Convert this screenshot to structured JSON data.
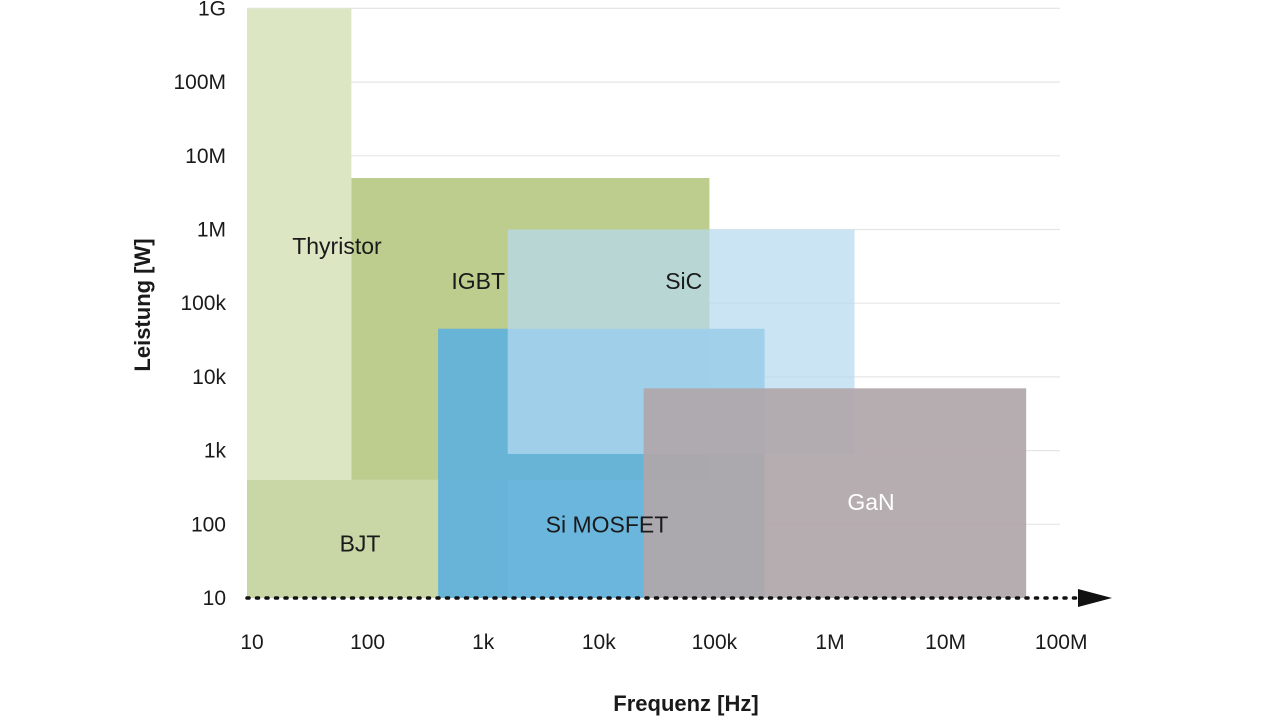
{
  "chart_data": {
    "type": "area",
    "xlabel": "Frequenz [Hz]",
    "ylabel": "Leistung [W]",
    "x_scale": "log",
    "y_scale": "log",
    "x_ticks": [
      "10",
      "100",
      "1k",
      "10k",
      "100k",
      "1M",
      "10M",
      "100M"
    ],
    "x_tick_values": [
      10,
      100,
      1000,
      10000,
      100000,
      1000000,
      10000000,
      100000000
    ],
    "y_ticks": [
      "10",
      "100",
      "1k",
      "10k",
      "100k",
      "1M",
      "10M",
      "100M",
      "1G"
    ],
    "y_tick_values": [
      10,
      100,
      1000,
      10000,
      100000,
      1000000,
      10000000,
      100000000,
      1000000000
    ],
    "xlim": [
      10,
      100000000
    ],
    "ylim": [
      10,
      1000000000
    ],
    "grid": "horizontal",
    "regions": [
      {
        "name": "Thyristor",
        "x_min": 10,
        "x_max": 80,
        "y_min": 400,
        "y_max": 1000000000,
        "color": "#dde6c3",
        "label_color": "#1a1a1a"
      },
      {
        "name": "IGBT",
        "x_min": 80,
        "x_max": 100000,
        "y_min": 400,
        "y_max": 5000000,
        "color": "#bccd8e",
        "label_color": "#1a1a1a"
      },
      {
        "name": "BJT",
        "x_min": 10,
        "x_max": 1800,
        "y_min": 10,
        "y_max": 400,
        "color": "#c9d7a6",
        "label_color": "#1a1a1a"
      },
      {
        "name": "Si MOSFET",
        "x_min": 450,
        "x_max": 300000,
        "y_min": 10,
        "y_max": 45000,
        "color": "#62b2da",
        "label_color": "#1a1a1a"
      },
      {
        "name": "SiC",
        "x_min": 1800,
        "x_max": 1800000,
        "y_min": 900,
        "y_max": 1000000,
        "color": "#b6daf0",
        "label_color": "#1a1a1a"
      },
      {
        "name": "GaN",
        "x_min": 27000,
        "x_max": 55000000,
        "y_min": 10,
        "y_max": 7000,
        "color": "#b0a7aa",
        "label_color": "#ffffff"
      }
    ],
    "label_positions": {
      "Thyristor": [
        60,
        600000
      ],
      "IGBT": [
        1000,
        200000
      ],
      "BJT": [
        95,
        55
      ],
      "Si MOSFET": [
        13000,
        100
      ],
      "SiC": [
        60000,
        200000
      ],
      "GaN": [
        2500000,
        200
      ]
    }
  }
}
